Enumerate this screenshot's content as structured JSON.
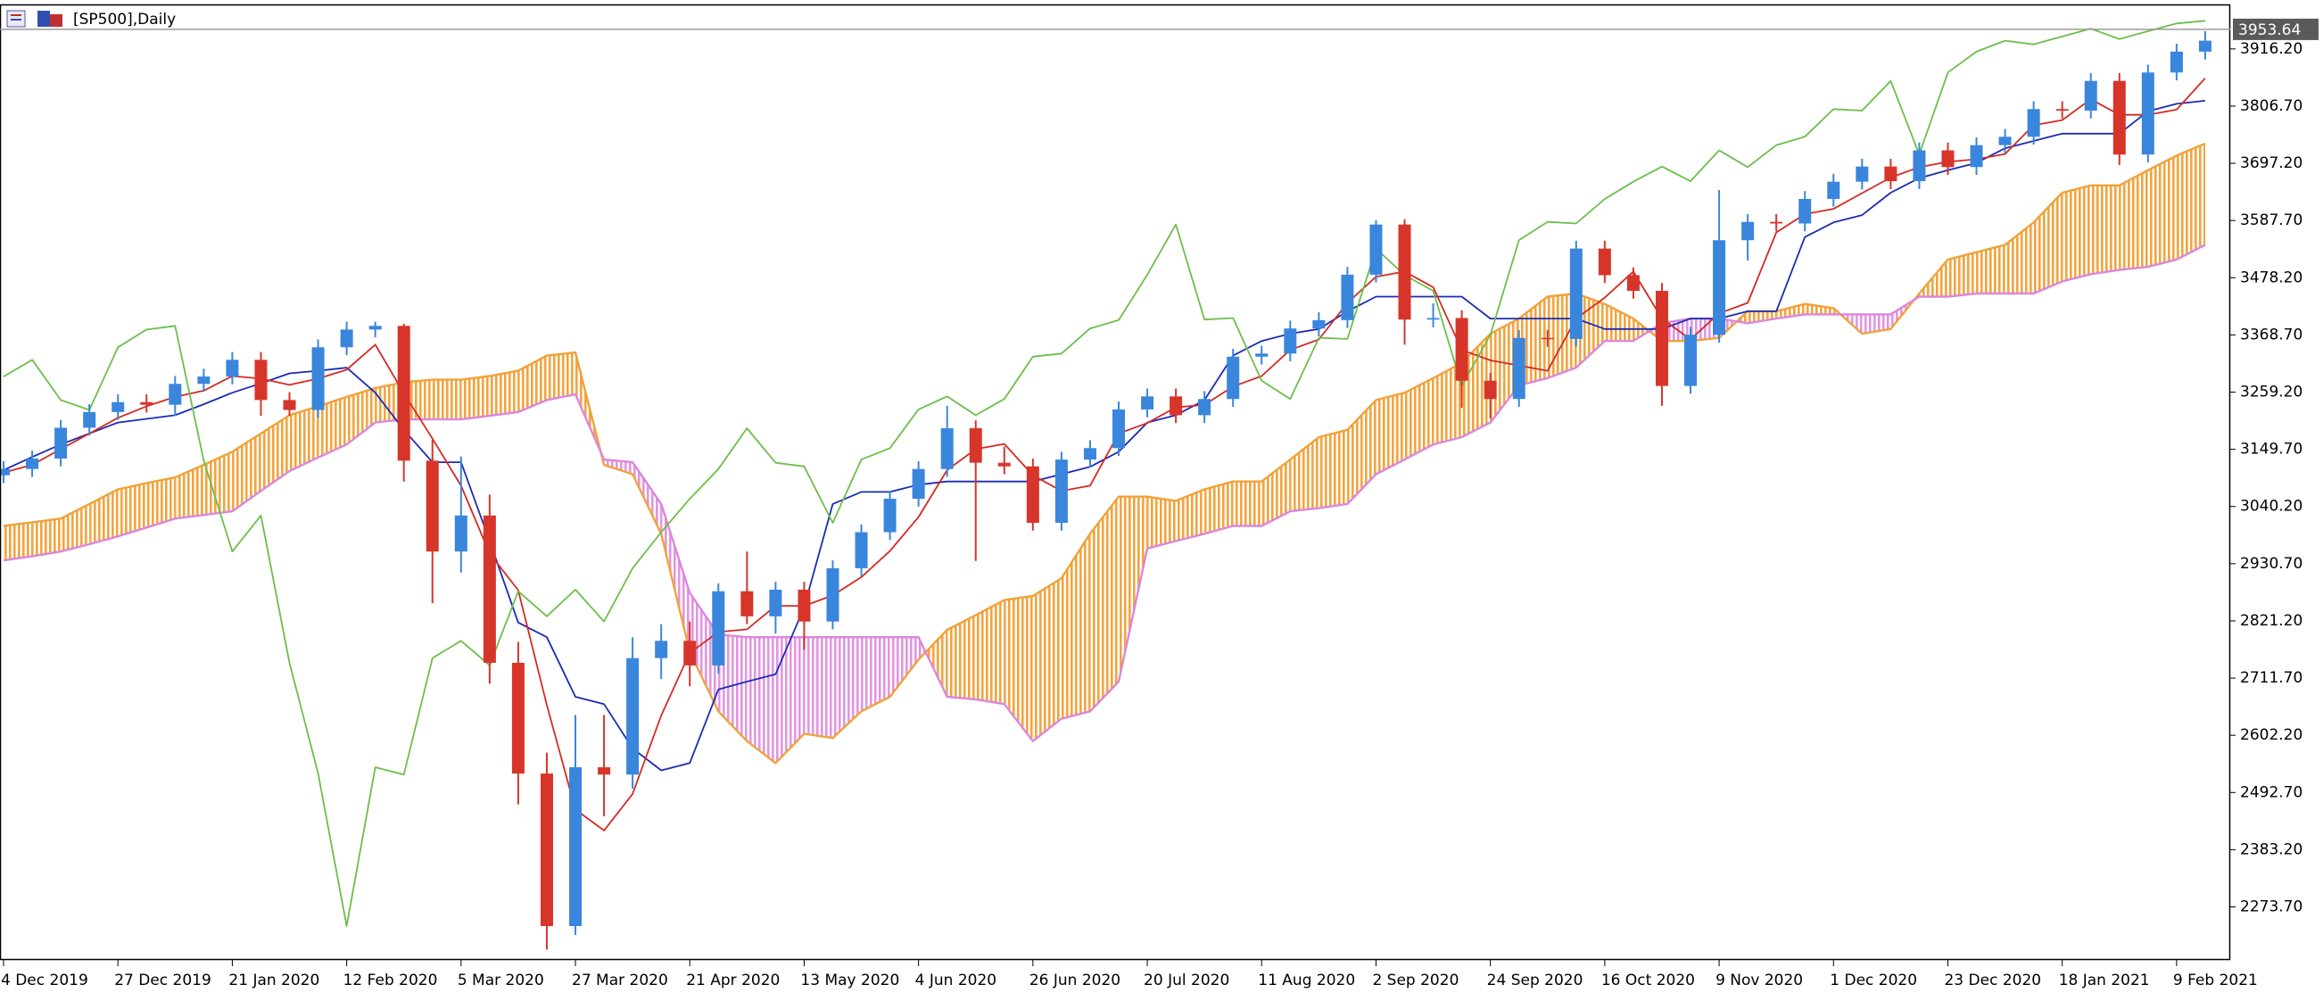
{
  "chart_data": {
    "type": "candlestick",
    "title": "[SP500],Daily",
    "categories": [
      "4 Dec 2019",
      null,
      null,
      null,
      "27 Dec 2019",
      null,
      null,
      null,
      "21 Jan 2020",
      null,
      null,
      null,
      "12 Feb 2020",
      null,
      null,
      null,
      "5 Mar 2020",
      null,
      null,
      null,
      "27 Mar 2020",
      null,
      null,
      null,
      "21 Apr 2020",
      null,
      null,
      null,
      "13 May 2020",
      null,
      null,
      null,
      "4 Jun 2020",
      null,
      null,
      null,
      "26 Jun 2020",
      null,
      null,
      null,
      "20 Jul 2020",
      null,
      null,
      null,
      "11 Aug 2020",
      null,
      null,
      null,
      "2 Sep 2020",
      null,
      null,
      null,
      "24 Sep 2020",
      null,
      null,
      null,
      "16 Oct 2020",
      null,
      null,
      null,
      "9 Nov 2020",
      null,
      null,
      null,
      "1 Dec 2020",
      null,
      null,
      null,
      "23 Dec 2020",
      null,
      null,
      null,
      "18 Jan 2021",
      null,
      null,
      null,
      "9 Feb 2021",
      null
    ],
    "open": [
      3100,
      3112,
      3132,
      3191,
      3221,
      3240,
      3235,
      3275,
      3289,
      3321,
      3244,
      3225,
      3345,
      3379,
      3386,
      3128,
      2954,
      3023,
      2741,
      2529,
      2237,
      2541,
      2527,
      2750,
      2783,
      2736,
      2878,
      2830,
      2881,
      2820,
      2922,
      2991,
      3055,
      3112,
      3190,
      3124,
      3117,
      3009,
      3130,
      3152,
      3226,
      3251,
      3215,
      3246,
      3327,
      3333,
      3381,
      3397,
      3484,
      3580,
      3398,
      3401,
      3281,
      3246,
      3363,
      3361,
      3534,
      3483,
      3453,
      3271,
      3369,
      3550,
      3585,
      3582,
      3629,
      3662,
      3691,
      3663,
      3722,
      3690,
      3732,
      3748,
      3801,
      3798,
      3855,
      3714,
      3871,
      3911
    ],
    "high": [
      3127,
      3147,
      3206,
      3236,
      3255,
      3255,
      3290,
      3304,
      3336,
      3336,
      3259,
      3360,
      3394,
      3394,
      3390,
      3168,
      3136,
      3063,
      2781,
      2569,
      2641,
      2641,
      2790,
      2815,
      2820,
      2893,
      2954,
      2896,
      2896,
      2937,
      3006,
      3070,
      3127,
      3233,
      3205,
      3155,
      3132,
      3145,
      3167,
      3241,
      3266,
      3266,
      3261,
      3342,
      3348,
      3396,
      3412,
      3499,
      3588,
      3590,
      3429,
      3416,
      3296,
      3378,
      3378,
      3549,
      3549,
      3498,
      3468,
      3384,
      3646,
      3600,
      3600,
      3644,
      3677,
      3706,
      3706,
      3737,
      3737,
      3747,
      3763,
      3816,
      3816,
      3870,
      3870,
      3886,
      3926,
      3950
    ],
    "low": [
      3085,
      3097,
      3117,
      3176,
      3206,
      3220,
      3214,
      3260,
      3274,
      3214,
      3214,
      3210,
      3330,
      3364,
      3088,
      2855,
      2914,
      2701,
      2470,
      2192,
      2220,
      2447,
      2500,
      2710,
      2696,
      2720,
      2815,
      2797,
      2766,
      2805,
      2907,
      2976,
      3040,
      3097,
      2936,
      3102,
      2994,
      2994,
      3115,
      3137,
      3211,
      3200,
      3200,
      3231,
      3312,
      3318,
      3366,
      3382,
      3469,
      3350,
      3383,
      3229,
      3209,
      3231,
      3346,
      3346,
      3468,
      3438,
      3233,
      3256,
      3354,
      3511,
      3567,
      3567,
      3614,
      3647,
      3648,
      3648,
      3675,
      3675,
      3717,
      3733,
      3783,
      3783,
      3694,
      3699,
      3856,
      3896
    ],
    "close": [
      3112,
      3132,
      3191,
      3221,
      3240,
      3235,
      3275,
      3289,
      3321,
      3244,
      3225,
      3345,
      3379,
      3386,
      3128,
      2954,
      3023,
      2741,
      2529,
      2237,
      2541,
      2527,
      2750,
      2783,
      2736,
      2878,
      2830,
      2881,
      2820,
      2922,
      2991,
      3055,
      3112,
      3190,
      3124,
      3117,
      3009,
      3130,
      3152,
      3226,
      3251,
      3215,
      3246,
      3327,
      3333,
      3381,
      3397,
      3484,
      3580,
      3398,
      3401,
      3281,
      3246,
      3363,
      3361,
      3534,
      3483,
      3453,
      3271,
      3369,
      3550,
      3585,
      3582,
      3629,
      3662,
      3691,
      3663,
      3722,
      3690,
      3732,
      3748,
      3801,
      3798,
      3855,
      3714,
      3871,
      3911,
      3932
    ],
    "up_color": "#3a86dc",
    "down_color": "#d8352a",
    "series": [
      {
        "color": "#d42a22",
        "values": [
          3105,
          3120,
          3150,
          3180,
          3210,
          3232,
          3250,
          3262,
          3290,
          3285,
          3273,
          3285,
          3302,
          3350,
          3257,
          3170,
          3080,
          2950,
          2880,
          2660,
          2460,
          2420,
          2490,
          2640,
          2760,
          2800,
          2805,
          2850,
          2850,
          2870,
          2905,
          2955,
          3020,
          3110,
          3150,
          3160,
          3100,
          3070,
          3080,
          3180,
          3200,
          3230,
          3235,
          3270,
          3290,
          3340,
          3360,
          3430,
          3480,
          3490,
          3460,
          3340,
          3320,
          3310,
          3300,
          3400,
          3440,
          3490,
          3400,
          3360,
          3410,
          3430,
          3565,
          3600,
          3610,
          3640,
          3670,
          3690,
          3700,
          3705,
          3715,
          3770,
          3780,
          3820,
          3790,
          3790,
          3800,
          3860
        ]
      },
      {
        "color": "#1a2cb4",
        "values": [
          3110,
          3135,
          3159,
          3180,
          3201,
          3208,
          3215,
          3236,
          3258,
          3276,
          3295,
          3300,
          3306,
          3258,
          3187,
          3125,
          3125,
          2974,
          2818,
          2790,
          2676,
          2662,
          2577,
          2535,
          2549,
          2690,
          2705,
          2719,
          2847,
          3045,
          3068,
          3068,
          3082,
          3088,
          3088,
          3088,
          3088,
          3102,
          3116,
          3145,
          3201,
          3215,
          3244,
          3329,
          3357,
          3371,
          3380,
          3414,
          3442,
          3442,
          3442,
          3442,
          3400,
          3400,
          3400,
          3400,
          3380,
          3380,
          3380,
          3400,
          3400,
          3414,
          3414,
          3556,
          3584,
          3598,
          3641,
          3669,
          3684,
          3698,
          3726,
          3740,
          3754,
          3754,
          3754,
          3797,
          3811,
          3817
        ]
      },
      {
        "color": "#6cbf4a",
        "values": [
          3289,
          3321,
          3244,
          3225,
          3345,
          3379,
          3386,
          3128,
          2954,
          3023,
          2741,
          2529,
          2237,
          2541,
          2527,
          2750,
          2783,
          2736,
          2878,
          2830,
          2881,
          2820,
          2922,
          2991,
          3055,
          3112,
          3190,
          3124,
          3117,
          3009,
          3130,
          3152,
          3226,
          3251,
          3215,
          3246,
          3327,
          3333,
          3381,
          3397,
          3484,
          3580,
          3398,
          3401,
          3281,
          3246,
          3363,
          3361,
          3534,
          3483,
          3453,
          3271,
          3369,
          3550,
          3585,
          3582,
          3629,
          3662,
          3691,
          3663,
          3722,
          3690,
          3732,
          3748,
          3801,
          3798,
          3855,
          3714,
          3871,
          3911,
          3932,
          3925,
          3940,
          3955,
          3935,
          3950,
          3965,
          3970
        ]
      },
      {
        "color": "#f0a238",
        "values": [
          3003,
          3010,
          3017,
          3045,
          3073,
          3085,
          3096,
          3120,
          3145,
          3180,
          3215,
          3232,
          3250,
          3267,
          3278,
          3283,
          3283,
          3290,
          3300,
          3329,
          3335,
          3120,
          3102,
          2988,
          2762,
          2648,
          2591,
          2549,
          2605,
          2597,
          2648,
          2676,
          2747,
          2804,
          2832,
          2861,
          2869,
          2903,
          2988,
          3059,
          3059,
          3051,
          3073,
          3088,
          3088,
          3130,
          3173,
          3187,
          3244,
          3258,
          3286,
          3315,
          3371,
          3400,
          3442,
          3448,
          3428,
          3400,
          3357,
          3357,
          3363,
          3414,
          3414,
          3428,
          3420,
          3371,
          3380,
          3448,
          3513,
          3527,
          3541,
          3584,
          3641,
          3655,
          3655,
          3684,
          3712,
          3735
        ]
      },
      {
        "color": "#dc86dc",
        "values": [
          2937,
          2945,
          2954,
          2968,
          2983,
          3000,
          3017,
          3024,
          3031,
          3070,
          3108,
          3134,
          3159,
          3201,
          3207,
          3207,
          3207,
          3214,
          3221,
          3244,
          3255,
          3130,
          3125,
          3045,
          2875,
          2795,
          2790,
          2790,
          2790,
          2790,
          2790,
          2790,
          2790,
          2676,
          2671,
          2662,
          2591,
          2634,
          2648,
          2705,
          2960,
          2974,
          2988,
          3003,
          3003,
          3031,
          3037,
          3045,
          3102,
          3130,
          3159,
          3173,
          3201,
          3272,
          3286,
          3306,
          3357,
          3357,
          3391,
          3400,
          3400,
          3391,
          3400,
          3408,
          3408,
          3408,
          3408,
          3442,
          3442,
          3448,
          3448,
          3448,
          3471,
          3485,
          3493,
          3499,
          3513,
          3541
        ]
      }
    ],
    "cloud_colors": {
      "above": "#f2a43e",
      "below": "#e295e2"
    },
    "last_price": 3953.64,
    "ylim": [
      2172.1,
      4001.3
    ],
    "yticks": [
      {
        "value": 2273.7,
        "label": "2273.70"
      },
      {
        "value": 2383.2,
        "label": "2383.20"
      },
      {
        "value": 2492.7,
        "label": "2492.70"
      },
      {
        "value": 2602.2,
        "label": "2602.20"
      },
      {
        "value": 2711.7,
        "label": "2711.70"
      },
      {
        "value": 2821.2,
        "label": "2821.20"
      },
      {
        "value": 2930.7,
        "label": "2930.70"
      },
      {
        "value": 3040.2,
        "label": "3040.20"
      },
      {
        "value": 3149.7,
        "label": "3149.70"
      },
      {
        "value": 3259.2,
        "label": "3259.20"
      },
      {
        "value": 3368.7,
        "label": "3368.70"
      },
      {
        "value": 3478.2,
        "label": "3478.20"
      },
      {
        "value": 3587.7,
        "label": "3587.70"
      },
      {
        "value": 3697.2,
        "label": "3697.20"
      },
      {
        "value": 3806.7,
        "label": "3806.70"
      },
      {
        "value": 3916.2,
        "label": "3916.20"
      }
    ],
    "grid": false
  }
}
